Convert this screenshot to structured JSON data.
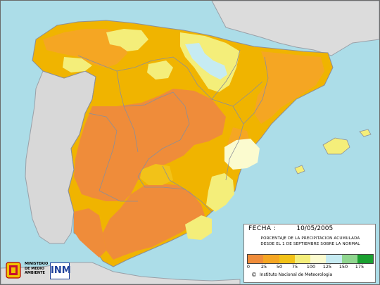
{
  "map": {
    "sea_color": "#acdde8",
    "land_other_color": "#dcdcdc",
    "border_color": "#9aa0a8",
    "areas": [
      {
        "name": "france",
        "fill": "#dcdcdc"
      },
      {
        "name": "portugal",
        "fill": "#d8d8d8"
      },
      {
        "name": "africa",
        "fill": "#dcdcdc"
      },
      {
        "name": "spain-base",
        "fill": "#f0b400"
      }
    ]
  },
  "legend": {
    "date_label": "FECHA :",
    "date_value": "10/05/2005",
    "title_line1": "PORCENTAJE DE LA PRECIPITACION ACUMULADA",
    "title_line2": "DESDE EL 1 DE SEPTIEMBRE SOBRE LA NORMAL",
    "scale": [
      {
        "color": "#ef8c3a"
      },
      {
        "color": "#f5a623"
      },
      {
        "color": "#f2c218"
      },
      {
        "color": "#f4ee7a"
      },
      {
        "color": "#fbfbcf"
      },
      {
        "color": "#c6ebf2"
      },
      {
        "color": "#8fd68f"
      },
      {
        "color": "#1aa030"
      }
    ],
    "ticks": [
      "0",
      "25",
      "50",
      "75",
      "100",
      "125",
      "150",
      "175"
    ],
    "copyright": "©",
    "credit": "Instituto Nacional de Meteorologia"
  },
  "logos": {
    "ministry_line1": "MINISTERIO",
    "ministry_line2": "DE MEDIO",
    "ministry_line3": "AMBIENTE",
    "inm_text": "INM"
  }
}
